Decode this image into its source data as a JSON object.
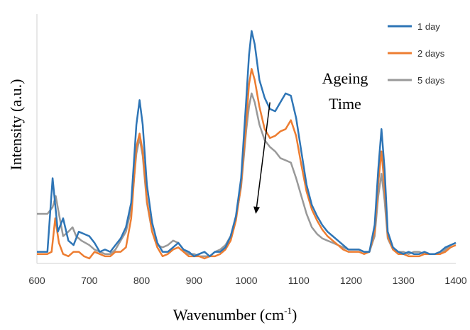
{
  "chart_data": {
    "type": "line",
    "title": "",
    "xlabel": "Wavenumber (cm-1)",
    "xlabel_main": "Wavenumber (cm",
    "xlabel_sup": "-1",
    "xlabel_tail": ")",
    "ylabel": "Intensity (a.u.)",
    "xlim": [
      600,
      1400
    ],
    "ylim": [
      0,
      100
    ],
    "xticks": [
      "600",
      "700",
      "800",
      "900",
      "1000",
      "1100",
      "1200",
      "1300",
      "1400"
    ],
    "grid": false,
    "legend_position": "top-right",
    "annotation": {
      "line1": "Ageing",
      "line2": "Time",
      "arrow": {
        "from": [
          1045,
          70
        ],
        "to": [
          1018,
          20
        ]
      }
    },
    "series": [
      {
        "name": "1 day",
        "color": "#2E75B6",
        "points": [
          [
            600,
            3
          ],
          [
            620,
            3
          ],
          [
            630,
            36
          ],
          [
            640,
            12
          ],
          [
            650,
            18
          ],
          [
            660,
            8
          ],
          [
            670,
            6
          ],
          [
            680,
            12
          ],
          [
            690,
            11
          ],
          [
            700,
            10
          ],
          [
            710,
            7
          ],
          [
            720,
            3
          ],
          [
            730,
            4
          ],
          [
            740,
            3
          ],
          [
            750,
            6
          ],
          [
            760,
            9
          ],
          [
            770,
            14
          ],
          [
            780,
            25
          ],
          [
            790,
            60
          ],
          [
            796,
            71
          ],
          [
            802,
            60
          ],
          [
            810,
            33
          ],
          [
            820,
            16
          ],
          [
            830,
            7
          ],
          [
            840,
            3
          ],
          [
            850,
            3
          ],
          [
            860,
            5
          ],
          [
            870,
            7
          ],
          [
            880,
            4
          ],
          [
            890,
            3
          ],
          [
            900,
            1
          ],
          [
            910,
            2
          ],
          [
            920,
            3
          ],
          [
            930,
            1
          ],
          [
            940,
            3
          ],
          [
            950,
            3
          ],
          [
            960,
            5
          ],
          [
            970,
            10
          ],
          [
            980,
            19
          ],
          [
            990,
            36
          ],
          [
            1000,
            72
          ],
          [
            1005,
            91
          ],
          [
            1010,
            102
          ],
          [
            1016,
            96
          ],
          [
            1025,
            80
          ],
          [
            1035,
            72
          ],
          [
            1045,
            67
          ],
          [
            1055,
            66
          ],
          [
            1065,
            70
          ],
          [
            1075,
            74
          ],
          [
            1085,
            73
          ],
          [
            1095,
            63
          ],
          [
            1105,
            48
          ],
          [
            1115,
            33
          ],
          [
            1125,
            24
          ],
          [
            1135,
            19
          ],
          [
            1145,
            15
          ],
          [
            1155,
            12
          ],
          [
            1165,
            10
          ],
          [
            1175,
            8
          ],
          [
            1185,
            6
          ],
          [
            1195,
            4
          ],
          [
            1205,
            4
          ],
          [
            1215,
            4
          ],
          [
            1225,
            3
          ],
          [
            1235,
            3
          ],
          [
            1245,
            15
          ],
          [
            1252,
            40
          ],
          [
            1258,
            58
          ],
          [
            1264,
            40
          ],
          [
            1270,
            12
          ],
          [
            1280,
            5
          ],
          [
            1290,
            3
          ],
          [
            1300,
            2
          ],
          [
            1310,
            3
          ],
          [
            1320,
            2
          ],
          [
            1330,
            2
          ],
          [
            1340,
            3
          ],
          [
            1350,
            2
          ],
          [
            1360,
            2
          ],
          [
            1370,
            3
          ],
          [
            1380,
            5
          ],
          [
            1390,
            6
          ],
          [
            1400,
            7
          ]
        ]
      },
      {
        "name": "2 days",
        "color": "#ED7D31",
        "points": [
          [
            600,
            2
          ],
          [
            620,
            2
          ],
          [
            628,
            3
          ],
          [
            635,
            18
          ],
          [
            642,
            7
          ],
          [
            650,
            2
          ],
          [
            660,
            1
          ],
          [
            670,
            3
          ],
          [
            680,
            3
          ],
          [
            690,
            1
          ],
          [
            700,
            0
          ],
          [
            710,
            3
          ],
          [
            720,
            2
          ],
          [
            730,
            1
          ],
          [
            740,
            1
          ],
          [
            750,
            3
          ],
          [
            760,
            3
          ],
          [
            770,
            5
          ],
          [
            780,
            18
          ],
          [
            790,
            50
          ],
          [
            796,
            56
          ],
          [
            802,
            48
          ],
          [
            810,
            26
          ],
          [
            820,
            12
          ],
          [
            830,
            5
          ],
          [
            840,
            1
          ],
          [
            850,
            2
          ],
          [
            860,
            4
          ],
          [
            870,
            5
          ],
          [
            880,
            3
          ],
          [
            890,
            1
          ],
          [
            900,
            1
          ],
          [
            910,
            1
          ],
          [
            920,
            0
          ],
          [
            930,
            1
          ],
          [
            940,
            1
          ],
          [
            950,
            2
          ],
          [
            960,
            4
          ],
          [
            970,
            8
          ],
          [
            980,
            17
          ],
          [
            990,
            33
          ],
          [
            1000,
            62
          ],
          [
            1005,
            78
          ],
          [
            1010,
            85
          ],
          [
            1016,
            80
          ],
          [
            1025,
            68
          ],
          [
            1035,
            58
          ],
          [
            1045,
            54
          ],
          [
            1055,
            55
          ],
          [
            1065,
            57
          ],
          [
            1075,
            58
          ],
          [
            1085,
            62
          ],
          [
            1095,
            55
          ],
          [
            1105,
            42
          ],
          [
            1115,
            30
          ],
          [
            1125,
            22
          ],
          [
            1135,
            17
          ],
          [
            1145,
            13
          ],
          [
            1155,
            10
          ],
          [
            1165,
            8
          ],
          [
            1175,
            6
          ],
          [
            1185,
            4
          ],
          [
            1195,
            3
          ],
          [
            1205,
            3
          ],
          [
            1215,
            3
          ],
          [
            1225,
            2
          ],
          [
            1235,
            3
          ],
          [
            1245,
            12
          ],
          [
            1252,
            34
          ],
          [
            1258,
            48
          ],
          [
            1264,
            32
          ],
          [
            1270,
            10
          ],
          [
            1280,
            4
          ],
          [
            1290,
            2
          ],
          [
            1300,
            2
          ],
          [
            1310,
            1
          ],
          [
            1320,
            1
          ],
          [
            1330,
            1
          ],
          [
            1340,
            2
          ],
          [
            1350,
            2
          ],
          [
            1360,
            2
          ],
          [
            1370,
            2
          ],
          [
            1380,
            3
          ],
          [
            1390,
            5
          ],
          [
            1400,
            6
          ]
        ]
      },
      {
        "name": "5 days",
        "color": "#999999",
        "points": [
          [
            600,
            20
          ],
          [
            620,
            20
          ],
          [
            630,
            23
          ],
          [
            636,
            28
          ],
          [
            642,
            20
          ],
          [
            650,
            10
          ],
          [
            660,
            12
          ],
          [
            668,
            14
          ],
          [
            675,
            10
          ],
          [
            685,
            8
          ],
          [
            700,
            6
          ],
          [
            710,
            4
          ],
          [
            720,
            3
          ],
          [
            730,
            2
          ],
          [
            740,
            2
          ],
          [
            750,
            4
          ],
          [
            760,
            8
          ],
          [
            770,
            12
          ],
          [
            780,
            22
          ],
          [
            790,
            47
          ],
          [
            796,
            54
          ],
          [
            802,
            46
          ],
          [
            810,
            25
          ],
          [
            820,
            12
          ],
          [
            830,
            6
          ],
          [
            840,
            5
          ],
          [
            850,
            6
          ],
          [
            860,
            8
          ],
          [
            870,
            7
          ],
          [
            880,
            4
          ],
          [
            890,
            2
          ],
          [
            900,
            2
          ],
          [
            910,
            1
          ],
          [
            920,
            1
          ],
          [
            930,
            1
          ],
          [
            940,
            3
          ],
          [
            950,
            4
          ],
          [
            960,
            6
          ],
          [
            970,
            10
          ],
          [
            980,
            18
          ],
          [
            990,
            32
          ],
          [
            1000,
            58
          ],
          [
            1005,
            68
          ],
          [
            1010,
            74
          ],
          [
            1016,
            70
          ],
          [
            1025,
            60
          ],
          [
            1035,
            53
          ],
          [
            1045,
            50
          ],
          [
            1055,
            48
          ],
          [
            1065,
            45
          ],
          [
            1075,
            44
          ],
          [
            1085,
            43
          ],
          [
            1095,
            36
          ],
          [
            1105,
            28
          ],
          [
            1115,
            20
          ],
          [
            1125,
            14
          ],
          [
            1135,
            11
          ],
          [
            1145,
            9
          ],
          [
            1155,
            8
          ],
          [
            1165,
            7
          ],
          [
            1175,
            6
          ],
          [
            1185,
            5
          ],
          [
            1195,
            4
          ],
          [
            1205,
            4
          ],
          [
            1215,
            4
          ],
          [
            1225,
            3
          ],
          [
            1235,
            3
          ],
          [
            1245,
            10
          ],
          [
            1252,
            28
          ],
          [
            1258,
            38
          ],
          [
            1264,
            26
          ],
          [
            1270,
            9
          ],
          [
            1280,
            4
          ],
          [
            1290,
            3
          ],
          [
            1300,
            3
          ],
          [
            1310,
            2
          ],
          [
            1320,
            3
          ],
          [
            1330,
            3
          ],
          [
            1340,
            2
          ],
          [
            1350,
            2
          ],
          [
            1360,
            2
          ],
          [
            1370,
            2
          ],
          [
            1380,
            4
          ],
          [
            1390,
            6
          ],
          [
            1400,
            7
          ]
        ]
      }
    ]
  }
}
